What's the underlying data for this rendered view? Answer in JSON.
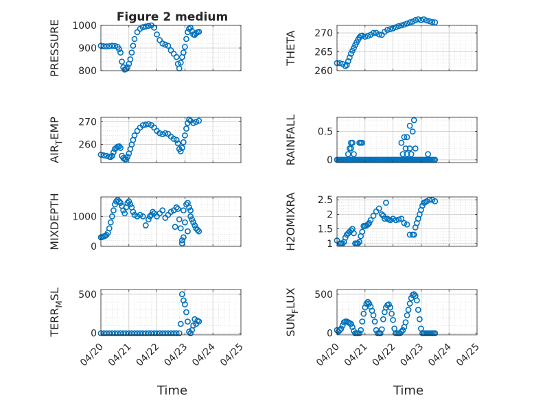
{
  "figure": {
    "title": "Figure 2 medium",
    "marker_color": "#0072BD",
    "grid": true,
    "minor_grid": true
  },
  "chart_data": [
    {
      "type": "scatter",
      "ylabel": "PRESSURE",
      "title": "Figure 2 medium",
      "xlim": [
        0,
        5
      ],
      "ylim": [
        800,
        1000
      ],
      "yticks": [
        800,
        900,
        1000
      ],
      "ytick_labels": [
        "800",
        "900",
        "1000"
      ],
      "x": [
        0,
        0.1,
        0.2,
        0.3,
        0.4,
        0.5,
        0.6,
        0.65,
        0.7,
        0.75,
        0.8,
        0.85,
        0.9,
        0.95,
        1.0,
        1.05,
        1.1,
        1.15,
        1.2,
        1.3,
        1.4,
        1.5,
        1.6,
        1.7,
        1.8,
        1.9,
        2.0,
        2.1,
        2.2,
        2.3,
        2.4,
        2.5,
        2.6,
        2.7,
        2.75,
        2.8,
        2.85,
        2.9,
        2.95,
        3.0,
        3.05,
        3.1,
        3.15,
        3.2,
        3.25,
        3.3,
        3.35,
        3.4,
        3.45,
        3.5
      ],
      "y": [
        910,
        908,
        907,
        908,
        910,
        909,
        905,
        895,
        880,
        840,
        815,
        805,
        808,
        815,
        830,
        850,
        880,
        910,
        940,
        970,
        985,
        992,
        995,
        998,
        1000,
        990,
        960,
        935,
        920,
        915,
        910,
        890,
        875,
        860,
        830,
        810,
        835,
        860,
        880,
        905,
        940,
        970,
        985,
        990,
        975,
        960,
        958,
        965,
        970,
        972
      ]
    },
    {
      "type": "scatter",
      "ylabel": "THETA",
      "xlim": [
        0,
        5
      ],
      "ylim": [
        260,
        272
      ],
      "yticks": [
        260,
        265,
        270
      ],
      "ytick_labels": [
        "260",
        "265",
        "270"
      ],
      "x": [
        0,
        0.1,
        0.2,
        0.3,
        0.35,
        0.4,
        0.45,
        0.5,
        0.55,
        0.6,
        0.65,
        0.7,
        0.75,
        0.8,
        0.85,
        0.9,
        1.0,
        1.1,
        1.2,
        1.3,
        1.4,
        1.5,
        1.6,
        1.7,
        1.8,
        1.9,
        2.0,
        2.1,
        2.2,
        2.3,
        2.4,
        2.5,
        2.6,
        2.7,
        2.8,
        2.9,
        3.0,
        3.1,
        3.2,
        3.3,
        3.4,
        3.5
      ],
      "y": [
        262,
        262,
        261.8,
        261.2,
        261.5,
        262.5,
        263.5,
        264.5,
        265.3,
        266,
        266.8,
        267.5,
        268.2,
        268.8,
        269.2,
        269.3,
        269,
        269.2,
        269.5,
        270,
        270,
        269.6,
        269.5,
        270.3,
        270.8,
        271,
        271.2,
        271.5,
        271.8,
        272,
        272.2,
        272.5,
        272.8,
        273,
        273.4,
        273.6,
        273.4,
        273.6,
        273.3,
        273.1,
        272.9,
        272.8
      ]
    },
    {
      "type": "scatter",
      "ylabel": "AIR_TEMP",
      "ylabel_parts": {
        "main1": "AIR",
        "sub": "T",
        "main2": "EMP"
      },
      "xlim": [
        0,
        5
      ],
      "ylim": [
        252,
        272
      ],
      "yticks": [
        260,
        270
      ],
      "ytick_labels": [
        "260",
        "270"
      ],
      "x": [
        0,
        0.1,
        0.2,
        0.3,
        0.35,
        0.4,
        0.45,
        0.5,
        0.55,
        0.6,
        0.65,
        0.7,
        0.75,
        0.8,
        0.85,
        0.9,
        0.95,
        1.0,
        1.05,
        1.1,
        1.15,
        1.2,
        1.3,
        1.4,
        1.5,
        1.6,
        1.7,
        1.8,
        1.9,
        2.0,
        2.1,
        2.2,
        2.3,
        2.4,
        2.5,
        2.6,
        2.7,
        2.75,
        2.8,
        2.85,
        2.9,
        2.95,
        3.0,
        3.05,
        3.1,
        3.15,
        3.2,
        3.3,
        3.4,
        3.5
      ],
      "y": [
        255.5,
        255.2,
        255,
        254.6,
        254.5,
        255,
        256.5,
        258,
        258.5,
        259,
        259.2,
        258.5,
        255,
        254,
        253.5,
        253.5,
        254.5,
        256,
        258,
        260,
        262,
        264,
        266,
        267.5,
        268.5,
        268.8,
        269,
        268.6,
        267.5,
        266,
        265,
        264.5,
        265,
        264.7,
        263.5,
        262.5,
        262,
        260.5,
        258,
        257,
        258.5,
        261,
        264,
        267,
        269.5,
        271,
        270.5,
        269.5,
        270,
        270.5
      ]
    },
    {
      "type": "scatter",
      "ylabel": "RAINFALL",
      "xlim": [
        0,
        5
      ],
      "ylim": [
        -0.05,
        0.75
      ],
      "yticks": [
        0,
        0.5
      ],
      "ytick_labels": [
        "0",
        "0.5"
      ],
      "x": [
        0,
        0.05,
        0.1,
        0.15,
        0.2,
        0.25,
        0.3,
        0.35,
        0.4,
        0.45,
        0.5,
        0.55,
        0.6,
        0.65,
        0.7,
        0.75,
        0.8,
        0.85,
        0.9,
        0.95,
        1.0,
        1.05,
        1.1,
        1.15,
        1.2,
        1.25,
        1.3,
        1.35,
        1.4,
        1.45,
        1.5,
        1.55,
        1.6,
        1.65,
        1.7,
        1.75,
        1.8,
        1.85,
        1.9,
        1.95,
        2.0,
        2.05,
        2.1,
        2.15,
        2.2,
        2.25,
        2.3,
        2.35,
        2.4,
        2.45,
        2.5,
        2.55,
        2.6,
        2.65,
        2.7,
        2.75,
        2.8,
        2.85,
        2.9,
        2.95,
        3.0,
        3.05,
        3.1,
        3.15,
        3.2,
        3.25,
        3.3,
        3.35,
        3.4,
        3.45,
        3.5,
        0.4,
        0.45,
        0.5,
        0.5,
        0.55,
        0.6,
        0.8,
        0.85,
        0.9,
        2.3,
        2.35,
        2.4,
        2.45,
        2.5,
        2.5,
        2.55,
        2.6,
        2.6,
        2.65,
        2.7,
        2.75,
        2.8,
        3.25
      ],
      "y": [
        0,
        0,
        0,
        0,
        0,
        0,
        0,
        0,
        0,
        0,
        0,
        0,
        0,
        0,
        0,
        0,
        0,
        0,
        0,
        0,
        0,
        0,
        0,
        0,
        0,
        0,
        0,
        0,
        0,
        0,
        0,
        0,
        0,
        0,
        0,
        0,
        0,
        0,
        0,
        0,
        0,
        0,
        0,
        0,
        0,
        0,
        0,
        0,
        0,
        0,
        0,
        0,
        0,
        0,
        0,
        0,
        0,
        0,
        0,
        0,
        0,
        0,
        0,
        0,
        0,
        0,
        0,
        0,
        0,
        0,
        0,
        0.1,
        0.2,
        0.3,
        0.2,
        0.3,
        0.1,
        0.3,
        0.3,
        0.3,
        0.3,
        0.1,
        0.4,
        0.2,
        0.1,
        0.4,
        0,
        0.2,
        0.6,
        0.1,
        0.5,
        0.7,
        0.2,
        0.1
      ]
    },
    {
      "type": "scatter",
      "ylabel": "MIXDEPTH",
      "xlim": [
        0,
        5
      ],
      "ylim": [
        0,
        1650
      ],
      "yticks": [
        0,
        1000
      ],
      "ytick_labels": [
        "0",
        "1000"
      ],
      "x": [
        0,
        0.05,
        0.1,
        0.15,
        0.2,
        0.25,
        0.3,
        0.35,
        0.4,
        0.45,
        0.5,
        0.55,
        0.6,
        0.65,
        0.7,
        0.75,
        0.8,
        0.85,
        0.9,
        0.95,
        1.0,
        1.05,
        1.1,
        1.15,
        1.2,
        1.3,
        1.4,
        1.5,
        1.6,
        1.7,
        1.75,
        1.8,
        1.85,
        1.9,
        2.0,
        2.1,
        2.2,
        2.3,
        2.4,
        2.5,
        2.6,
        2.7,
        2.75,
        2.8,
        2.85,
        2.9,
        2.95,
        3.0,
        3.05,
        3.1,
        3.15,
        3.2,
        3.25,
        3.3,
        3.35,
        3.4,
        3.45,
        3.5,
        2.65,
        2.9,
        2.95,
        3.1,
        3.2
      ],
      "y": [
        300,
        310,
        330,
        350,
        380,
        450,
        600,
        800,
        1000,
        1200,
        1400,
        1500,
        1550,
        1500,
        1450,
        1350,
        1200,
        1100,
        1300,
        1450,
        1500,
        1400,
        1300,
        1150,
        1050,
        1000,
        1050,
        1000,
        700,
        900,
        1000,
        1050,
        1150,
        1100,
        1000,
        1100,
        1200,
        950,
        1050,
        1150,
        1200,
        1300,
        1250,
        900,
        600,
        100,
        300,
        800,
        1400,
        1450,
        1300,
        1200,
        900,
        800,
        700,
        600,
        550,
        500,
        650,
        200,
        1200,
        500,
        1000
      ]
    },
    {
      "type": "scatter",
      "ylabel": "H2OMIXRA",
      "xlim": [
        0,
        5
      ],
      "ylim": [
        0.9,
        2.6
      ],
      "yticks": [
        1,
        1.5,
        2,
        2.5
      ],
      "ytick_labels": [
        "1",
        "1.5",
        "2",
        "2.5"
      ],
      "x": [
        0,
        0.1,
        0.15,
        0.2,
        0.25,
        0.3,
        0.35,
        0.4,
        0.45,
        0.5,
        0.55,
        0.6,
        0.65,
        0.7,
        0.75,
        0.8,
        0.85,
        0.9,
        0.95,
        1.0,
        1.05,
        1.1,
        1.15,
        1.2,
        1.3,
        1.4,
        1.5,
        1.6,
        1.65,
        1.7,
        1.75,
        1.8,
        1.85,
        1.9,
        2.0,
        2.1,
        2.2,
        2.3,
        2.4,
        2.5,
        2.6,
        2.7,
        2.75,
        2.8,
        2.85,
        2.9,
        2.95,
        3.0,
        3.05,
        3.1,
        3.15,
        3.2,
        3.3,
        3.4,
        3.5
      ],
      "y": [
        1.1,
        1.0,
        1.0,
        1.0,
        1.05,
        1.2,
        1.3,
        1.35,
        1.4,
        1.45,
        1.5,
        1.35,
        1.0,
        1.0,
        1.0,
        1.05,
        1.25,
        1.4,
        1.6,
        1.6,
        1.62,
        1.65,
        1.7,
        1.8,
        1.95,
        2.1,
        2.2,
        2.0,
        1.95,
        1.85,
        2.4,
        1.85,
        1.82,
        1.8,
        1.85,
        1.8,
        1.82,
        1.85,
        1.7,
        1.65,
        1.3,
        1.3,
        1.3,
        1.55,
        1.7,
        1.85,
        2.0,
        2.15,
        2.3,
        2.4,
        2.42,
        2.45,
        2.5,
        2.5,
        2.45
      ]
    },
    {
      "type": "scatter",
      "ylabel": "TERR_MSL",
      "ylabel_parts": {
        "main1": "TERR",
        "sub": "M",
        "main2": "SL"
      },
      "xlim": [
        0,
        5
      ],
      "ylim": [
        -20,
        560
      ],
      "yticks": [
        0,
        500
      ],
      "ytick_labels": [
        "0",
        "500"
      ],
      "x": [
        0,
        0.1,
        0.2,
        0.3,
        0.4,
        0.5,
        0.6,
        0.7,
        0.8,
        0.9,
        1.0,
        1.1,
        1.2,
        1.3,
        1.4,
        1.5,
        1.6,
        1.7,
        1.8,
        1.9,
        2.0,
        2.1,
        2.2,
        2.3,
        2.4,
        2.5,
        2.6,
        2.7,
        2.8,
        2.85,
        2.9,
        2.95,
        3.0,
        3.05,
        3.1,
        3.15,
        3.2,
        3.25,
        3.3,
        3.35,
        3.4,
        3.45,
        3.5
      ],
      "y": [
        0,
        0,
        0,
        0,
        0,
        0,
        0,
        0,
        0,
        0,
        0,
        0,
        0,
        0,
        0,
        0,
        0,
        0,
        0,
        0,
        0,
        0,
        0,
        0,
        0,
        0,
        0,
        0,
        0,
        120,
        500,
        420,
        370,
        270,
        150,
        20,
        0,
        40,
        100,
        180,
        120,
        160,
        150
      ]
    },
    {
      "type": "scatter",
      "ylabel": "SUN_FLUX",
      "ylabel_parts": {
        "main1": "SUN",
        "sub": "F",
        "main2": "LUX"
      },
      "xlim": [
        0,
        5
      ],
      "ylim": [
        -20,
        560
      ],
      "yticks": [
        0,
        500
      ],
      "ytick_labels": [
        "0",
        "500"
      ],
      "x": [
        0,
        0.05,
        0.1,
        0.15,
        0.2,
        0.25,
        0.3,
        0.35,
        0.4,
        0.45,
        0.5,
        0.55,
        0.6,
        0.65,
        0.7,
        0.75,
        0.8,
        0.85,
        0.9,
        0.95,
        1.0,
        1.05,
        1.1,
        1.15,
        1.2,
        1.25,
        1.3,
        1.35,
        1.4,
        1.45,
        1.5,
        1.55,
        1.6,
        1.65,
        1.7,
        1.75,
        1.8,
        1.85,
        1.9,
        1.95,
        2.0,
        2.05,
        2.1,
        2.15,
        2.2,
        2.25,
        2.3,
        2.35,
        2.4,
        2.45,
        2.5,
        2.55,
        2.6,
        2.65,
        2.7,
        2.75,
        2.8,
        2.85,
        2.9,
        2.95,
        3.0,
        3.05,
        3.1,
        3.15,
        3.2,
        3.25,
        3.3,
        3.35,
        3.4,
        3.45,
        3.5
      ],
      "y": [
        40,
        20,
        40,
        60,
        100,
        140,
        150,
        150,
        140,
        130,
        120,
        80,
        30,
        0,
        0,
        0,
        0,
        40,
        150,
        250,
        330,
        380,
        400,
        380,
        340,
        290,
        230,
        150,
        40,
        0,
        0,
        0,
        50,
        180,
        270,
        330,
        360,
        370,
        330,
        250,
        170,
        60,
        0,
        0,
        0,
        0,
        20,
        40,
        80,
        140,
        230,
        300,
        380,
        450,
        490,
        500,
        480,
        420,
        300,
        180,
        60,
        0,
        0,
        0,
        0,
        0,
        0,
        0,
        0,
        0,
        0
      ]
    }
  ],
  "x_axis": {
    "ticks": [
      0,
      1,
      2,
      3,
      4,
      5
    ],
    "tick_labels": [
      "04/20",
      "04/21",
      "04/22",
      "04/23",
      "04/24",
      "04/25"
    ],
    "label": "Time"
  }
}
